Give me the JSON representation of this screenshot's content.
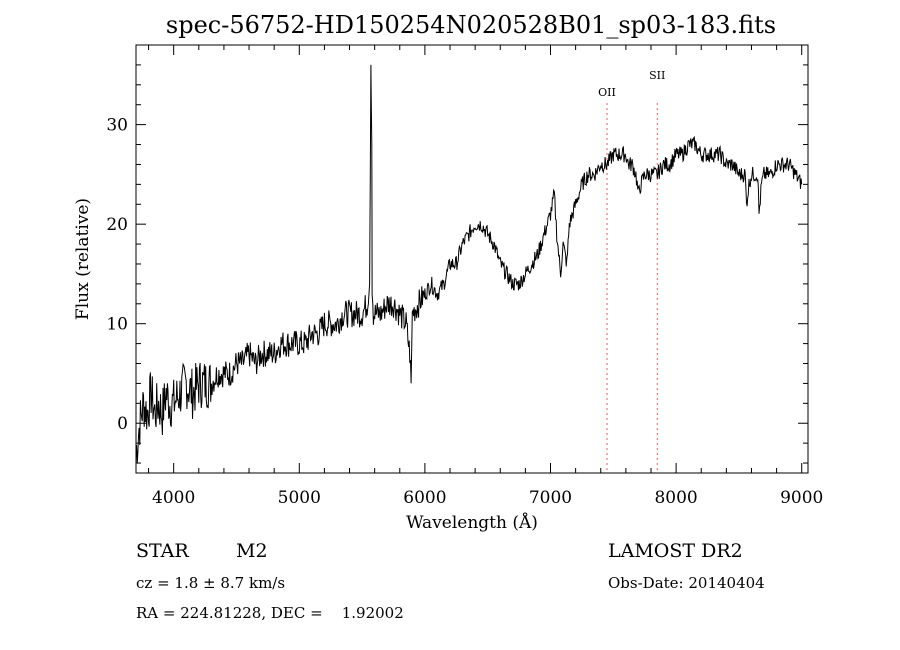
{
  "chart_data": {
    "type": "line",
    "title": "spec-56752-HD150254N020528B01_sp03-183.fits",
    "xlabel": "Wavelength (Å)",
    "ylabel": "Flux (relative)",
    "xlim": [
      3700,
      9050
    ],
    "ylim": [
      -5,
      38
    ],
    "xticks": [
      4000,
      5000,
      6000,
      7000,
      8000,
      9000
    ],
    "yticks": [
      0,
      10,
      20,
      30
    ],
    "grid": false,
    "line_color": "#000000",
    "marker_color": "#e06060",
    "series": [
      {
        "x": [
          3700,
          3730,
          3760,
          3790,
          3820,
          3850,
          3880,
          3910,
          3940,
          3970,
          4000,
          4050,
          4100,
          4150,
          4200,
          4250,
          4300,
          4350,
          4400,
          4450,
          4500,
          4550,
          4600,
          4650,
          4700,
          4750,
          4800,
          4850,
          4900,
          4950,
          5000,
          5050,
          5100,
          5150,
          5200,
          5250,
          5300,
          5350,
          5400,
          5450,
          5500,
          5540,
          5560,
          5570,
          5577,
          5580,
          5590,
          5620,
          5650,
          5700,
          5750,
          5800,
          5850,
          5880,
          5890,
          5900,
          5950,
          6000,
          6050,
          6100,
          6150,
          6200,
          6250,
          6300,
          6350,
          6400,
          6450,
          6500,
          6550,
          6600,
          6650,
          6700,
          6750,
          6800,
          6850,
          6900,
          6950,
          7000,
          7030,
          7050,
          7080,
          7100,
          7130,
          7150,
          7200,
          7250,
          7300,
          7350,
          7400,
          7450,
          7500,
          7550,
          7600,
          7620,
          7650,
          7680,
          7700,
          7720,
          7750,
          7800,
          7850,
          7900,
          7950,
          8000,
          8050,
          8100,
          8150,
          8200,
          8250,
          8300,
          8350,
          8400,
          8450,
          8500,
          8550,
          8560,
          8580,
          8600,
          8650,
          8660,
          8680,
          8700,
          8750,
          8800,
          8850,
          8900,
          8950,
          9000
        ],
        "values": [
          -3,
          0,
          2,
          1,
          3,
          1,
          2,
          1,
          3,
          2,
          2,
          3,
          4,
          3,
          4,
          4,
          4,
          5,
          5,
          5,
          6,
          6,
          7,
          6,
          7,
          7,
          7,
          8,
          8,
          8,
          8,
          8,
          9,
          9,
          10,
          10,
          10,
          11,
          11,
          11,
          11,
          12,
          14,
          36,
          28,
          14,
          11,
          11,
          11,
          12,
          12,
          11,
          10,
          7,
          4,
          11,
          12,
          13,
          14,
          13,
          14,
          16,
          16,
          18,
          19,
          20,
          20,
          19,
          18,
          16,
          15,
          14,
          14,
          15,
          16,
          17,
          19,
          21,
          23,
          19,
          15,
          18,
          16,
          20,
          22,
          24,
          25,
          25,
          26,
          26,
          27,
          27,
          27,
          26,
          26,
          25,
          23,
          24,
          25,
          25,
          25,
          26,
          26,
          27,
          27,
          28,
          28,
          27,
          27,
          27,
          27,
          26,
          26,
          25,
          25,
          22,
          24,
          25,
          25,
          21,
          24,
          25,
          25,
          26,
          26,
          26,
          25,
          24
        ]
      }
    ],
    "annotations": [
      {
        "label": "OII",
        "x": 7450
      },
      {
        "label": "SII",
        "x": 7850
      }
    ]
  },
  "info": {
    "object_type": "STAR",
    "subclass": "M2",
    "survey": "LAMOST DR2",
    "cz": "cz = 1.8 ± 8.7 km/s",
    "obs_date": "Obs-Date: 20140404",
    "coords": "RA = 224.81228, DEC =    1.92002"
  }
}
